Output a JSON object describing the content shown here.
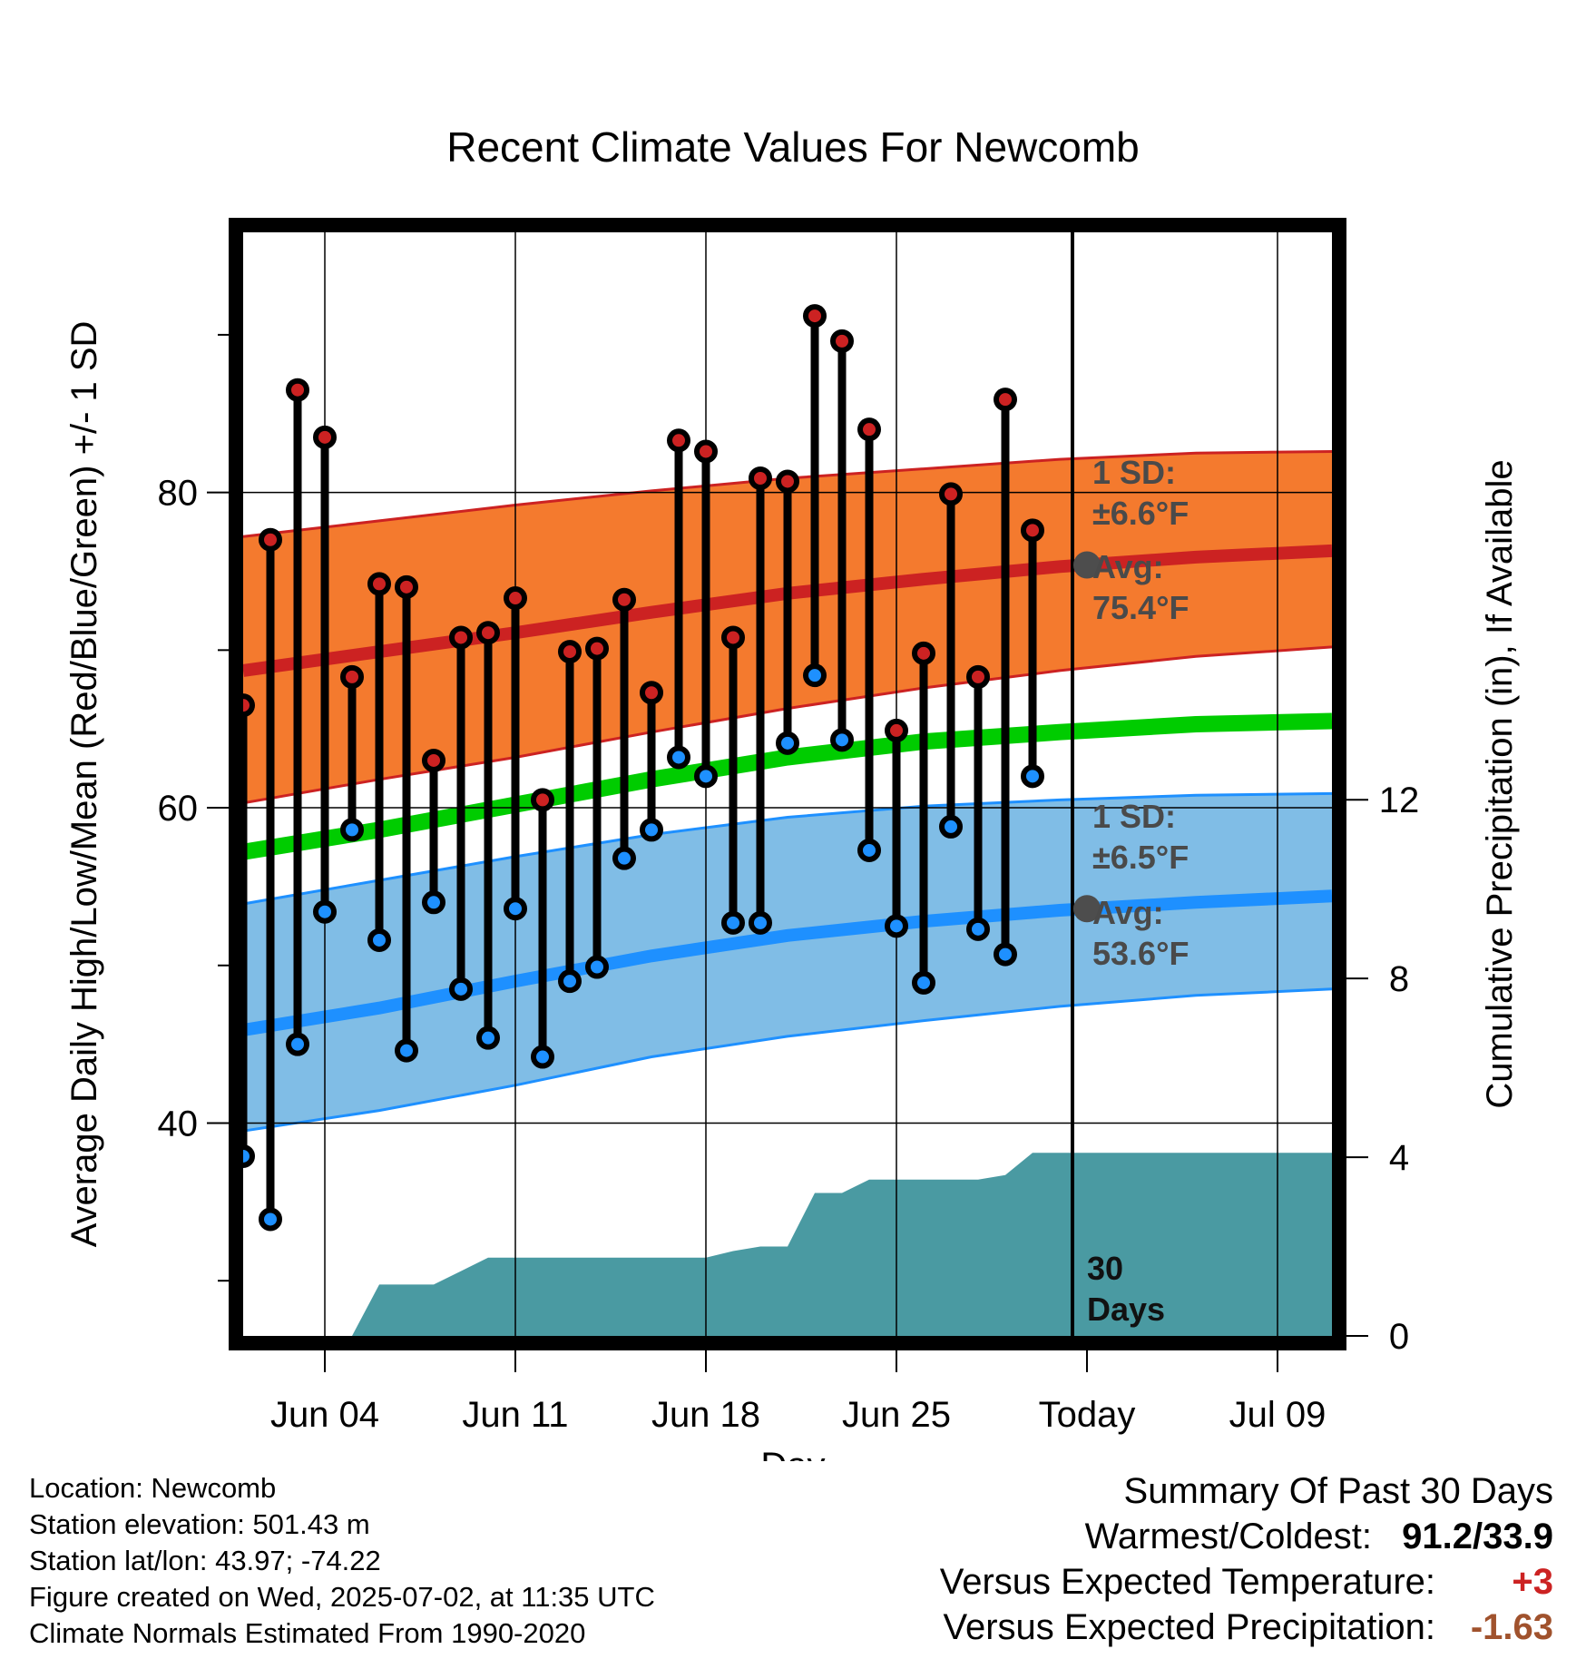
{
  "chart_data": {
    "type": "line",
    "title": "Recent Climate Values For Newcomb",
    "xlabel": "Day",
    "ylabel": "Average Daily High/Low/Mean (Red/Blue/Green) +/- 1 SD",
    "y2label": "Cumulative Precipitation (in), If Available",
    "x_range": [
      "2025-06-01",
      "2025-07-11"
    ],
    "ylim": [
      26.5,
      96.5
    ],
    "y2lim": [
      0,
      24.7
    ],
    "x_ticks": [
      {
        "date": "2025-06-04",
        "label": "Jun 04"
      },
      {
        "date": "2025-06-11",
        "label": "Jun 11"
      },
      {
        "date": "2025-06-18",
        "label": "Jun 18"
      },
      {
        "date": "2025-06-25",
        "label": "Jun 25"
      },
      {
        "date": "2025-07-02",
        "label": "Today"
      },
      {
        "date": "2025-07-09",
        "label": "Jul 09"
      }
    ],
    "y_ticks": [
      {
        "value": 40,
        "label": "40"
      },
      {
        "value": 60,
        "label": "60"
      },
      {
        "value": 80,
        "label": "80"
      }
    ],
    "y_minor_ticks": [
      30,
      50,
      70,
      90
    ],
    "y2_ticks": [
      {
        "value": 0,
        "label": "0"
      },
      {
        "value": 4,
        "label": "4"
      },
      {
        "value": 8,
        "label": "8"
      },
      {
        "value": 12,
        "label": "12"
      }
    ],
    "grid": true,
    "colors": {
      "high": "#cc2222",
      "low": "#1e90ff",
      "mean": "#00cc00",
      "high_band": "#f47a2e",
      "low_band": "#80bde6",
      "precip": "#4a9aa2",
      "annotation": "#4a4a4a"
    },
    "observed": {
      "dates": [
        "2025-06-01",
        "2025-06-02",
        "2025-06-03",
        "2025-06-04",
        "2025-06-05",
        "2025-06-06",
        "2025-06-07",
        "2025-06-08",
        "2025-06-09",
        "2025-06-10",
        "2025-06-11",
        "2025-06-12",
        "2025-06-13",
        "2025-06-14",
        "2025-06-15",
        "2025-06-16",
        "2025-06-17",
        "2025-06-18",
        "2025-06-19",
        "2025-06-20",
        "2025-06-21",
        "2025-06-22",
        "2025-06-23",
        "2025-06-24",
        "2025-06-25",
        "2025-06-26",
        "2025-06-27",
        "2025-06-28",
        "2025-06-29",
        "2025-06-30",
        "2025-07-01"
      ],
      "high": [
        66.5,
        77.0,
        86.5,
        83.5,
        68.3,
        74.2,
        74.0,
        63.0,
        70.8,
        71.1,
        73.3,
        60.5,
        69.9,
        70.1,
        73.2,
        67.3,
        83.3,
        82.6,
        70.8,
        80.9,
        80.7,
        91.2,
        89.6,
        84.0,
        64.9,
        69.8,
        79.9,
        68.3,
        85.9,
        77.6,
        null
      ],
      "low": [
        37.9,
        33.9,
        45.0,
        53.4,
        58.6,
        51.6,
        44.6,
        54.0,
        48.5,
        45.4,
        53.6,
        44.2,
        49.0,
        49.9,
        56.8,
        58.6,
        63.2,
        62.0,
        52.7,
        52.7,
        64.1,
        68.4,
        64.3,
        57.3,
        52.5,
        48.9,
        58.8,
        52.3,
        50.7,
        62.0,
        null
      ]
    },
    "normals": {
      "dates": [
        "2025-06-01",
        "2025-06-06",
        "2025-06-11",
        "2025-06-16",
        "2025-06-21",
        "2025-06-26",
        "2025-07-01",
        "2025-07-06",
        "2025-07-11"
      ],
      "high_avg": [
        68.7,
        69.9,
        71.1,
        72.4,
        73.6,
        74.5,
        75.3,
        75.9,
        76.3
      ],
      "high_minus_sd": [
        60.3,
        61.8,
        63.2,
        64.8,
        66.3,
        67.6,
        68.7,
        69.6,
        70.2
      ],
      "high_plus_sd": [
        77.2,
        78.2,
        79.2,
        80.1,
        80.9,
        81.5,
        82.1,
        82.5,
        82.6
      ],
      "mean_avg": [
        57.2,
        58.6,
        60.2,
        61.8,
        63.2,
        64.2,
        64.8,
        65.3,
        65.5
      ],
      "low_avg": [
        45.9,
        47.3,
        49.0,
        50.6,
        51.9,
        52.8,
        53.5,
        54.0,
        54.4
      ],
      "low_minus_sd": [
        39.5,
        40.8,
        42.4,
        44.2,
        45.5,
        46.5,
        47.4,
        48.1,
        48.5
      ],
      "low_plus_sd": [
        53.9,
        55.4,
        56.9,
        58.3,
        59.4,
        60.1,
        60.5,
        60.8,
        60.9
      ]
    },
    "precip_cumulative": {
      "dates": [
        "2025-06-01",
        "2025-06-04",
        "2025-06-05",
        "2025-06-06",
        "2025-06-08",
        "2025-06-09",
        "2025-06-10",
        "2025-06-18",
        "2025-06-19",
        "2025-06-20",
        "2025-06-21",
        "2025-06-22",
        "2025-06-23",
        "2025-06-24",
        "2025-06-28",
        "2025-06-29",
        "2025-06-30",
        "2025-07-11"
      ],
      "values": [
        0,
        0,
        0,
        1.15,
        1.15,
        1.45,
        1.75,
        1.75,
        1.9,
        2.0,
        2.0,
        3.2,
        3.2,
        3.5,
        3.5,
        3.6,
        4.1,
        4.1
      ]
    },
    "annotations": {
      "high_sd_label": "1 SD:",
      "high_sd_value": "±6.6°F",
      "high_avg_label": "Avg:",
      "high_avg_value": "75.4°F",
      "high_avg_marker": 75.4,
      "low_sd_label": "1 SD:",
      "low_sd_value": "±6.5°F",
      "low_avg_label": "Avg:",
      "low_avg_value": "53.6°F",
      "low_avg_marker": 53.6,
      "days_label_1": "30",
      "days_label_2": "Days"
    }
  },
  "footer": {
    "location": "Location: Newcomb",
    "elevation": "Station elevation: 501.43 m",
    "latlon": "Station lat/lon: 43.97; -74.22",
    "created": "Figure created on Wed, 2025-07-02, at 11:35 UTC",
    "normals": "Climate Normals Estimated From 1990-2020"
  },
  "summary": {
    "title": "Summary Of Past 30 Days",
    "warm_cold_label": "Warmest/Coldest:",
    "warm_cold_value": "91.2/33.9",
    "temp_label": "Versus Expected Temperature:",
    "temp_value": "+3",
    "temp_color": "#cc2222",
    "precip_label": "Versus Expected Precipitation:",
    "precip_value": "-1.63",
    "precip_color": "#a0522d"
  }
}
